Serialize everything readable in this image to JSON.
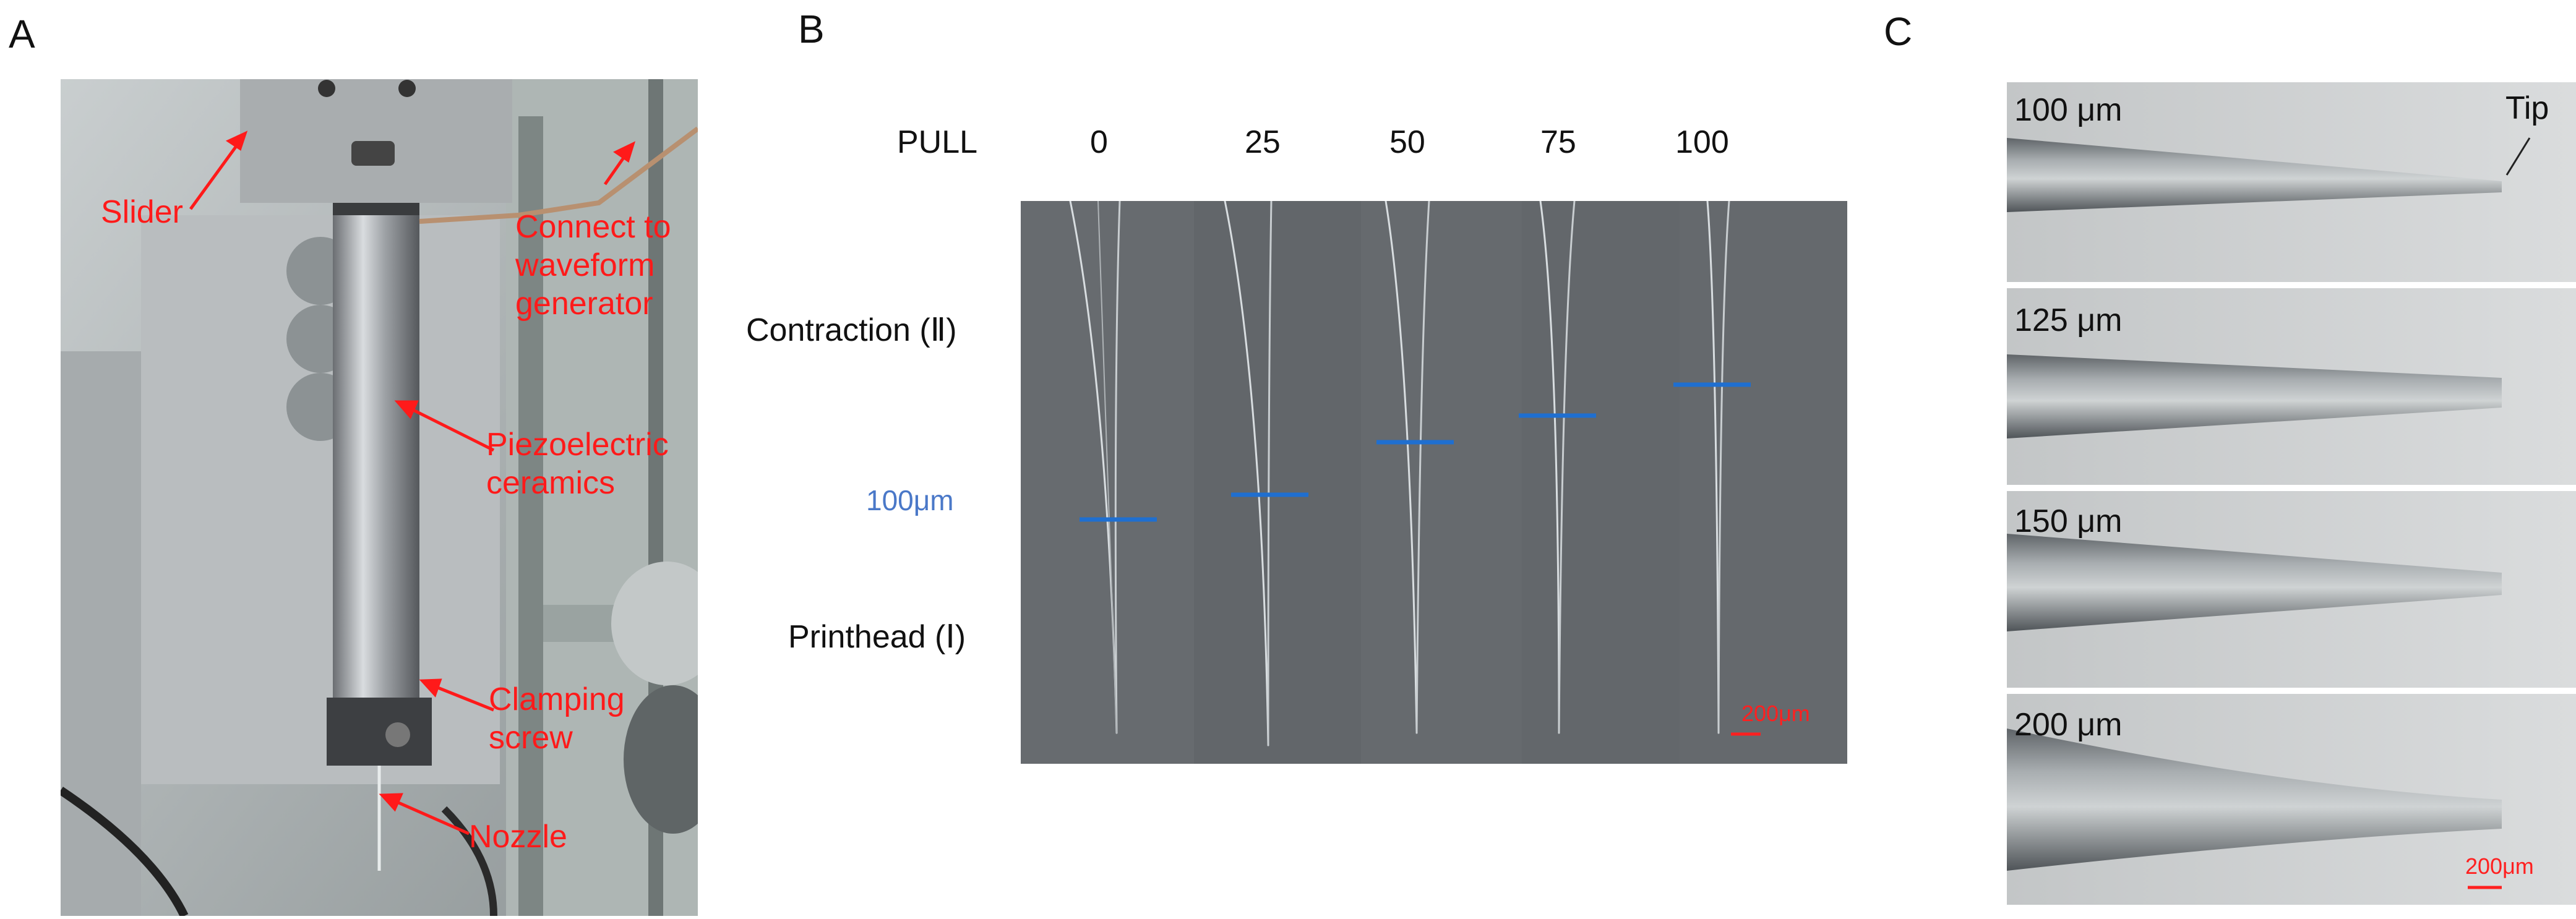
{
  "panels": {
    "a": "A",
    "b": "B",
    "c": "C"
  },
  "panel_a": {
    "labels": {
      "slider": "Slider",
      "connect": "Connect to\nwaveform\ngenerator",
      "piezo": "Piezoelectric\nceramics",
      "clamp": "Clamping\nscrew",
      "nozzle": "Nozzle"
    }
  },
  "panel_b": {
    "pull_label": "PULL",
    "pull_values": [
      "0",
      "25",
      "50",
      "75",
      "100"
    ],
    "contraction": "Contraction (Ⅱ)",
    "printhead": "Printhead (Ⅰ)",
    "scale_100": "100μm",
    "scale_200": "200μm",
    "colors": {
      "marker": "#1f6fd0",
      "scale": "#ff2020"
    }
  },
  "panel_c": {
    "tip": "Tip",
    "sizes": [
      "100 μm",
      "125 μm",
      "150 μm",
      "200 μm"
    ],
    "scale": "200μm"
  }
}
